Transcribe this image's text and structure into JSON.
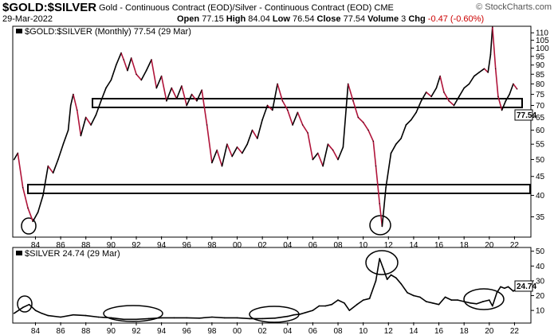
{
  "header": {
    "symbol": "$GOLD:$SILVER",
    "description": "Gold - Continuous Contract (EOD)/Silver - Continuous Contract (EOD)  CME",
    "date": "29-Mar-2022",
    "open_label": "Open",
    "open": "77.15",
    "high_label": "High",
    "high": "84.04",
    "low_label": "Low",
    "low": "76.54",
    "close_label": "Close",
    "close": "77.54",
    "volume_label": "Volume",
    "volume": "3",
    "chg_label": "Chg",
    "chg": "-0.47 (-0.60%)",
    "brand": "© StockCharts.com"
  },
  "colors": {
    "up": "#000000",
    "down": "#b0143a",
    "silver": "#000000",
    "box": "#000000"
  },
  "chart_data": [
    {
      "type": "line",
      "legend": "$GOLD:$SILVER (Monthly) 77.54 (29 Mar)",
      "last_value_label": "77.54",
      "scale": "log",
      "ylim": [
        31,
        114
      ],
      "xlim": [
        1982.2,
        2023.3
      ],
      "y_ticks": [
        35,
        40,
        45,
        50,
        55,
        60,
        65,
        70,
        75,
        80,
        85,
        90,
        95,
        100,
        105,
        110
      ],
      "x_ticks": [
        "84",
        "86",
        "88",
        "90",
        "92",
        "94",
        "96",
        "98",
        "00",
        "02",
        "04",
        "06",
        "08",
        "10",
        "12",
        "14",
        "16",
        "18",
        "20",
        "22"
      ],
      "x": [
        1982.3,
        1982.6,
        1983.0,
        1983.4,
        1983.8,
        1984.2,
        1984.6,
        1985.0,
        1985.4,
        1985.8,
        1986.2,
        1986.6,
        1986.8,
        1987.0,
        1987.3,
        1987.6,
        1988.0,
        1988.4,
        1988.8,
        1989.2,
        1989.6,
        1990.0,
        1990.4,
        1990.8,
        1991.0,
        1991.3,
        1991.6,
        1992.0,
        1992.4,
        1992.8,
        1993.2,
        1993.6,
        1994.0,
        1994.4,
        1994.8,
        1995.2,
        1995.6,
        1996.0,
        1996.4,
        1996.8,
        1997.2,
        1997.6,
        1998.0,
        1998.4,
        1998.8,
        1999.2,
        1999.6,
        2000.0,
        2000.4,
        2000.8,
        2001.2,
        2001.6,
        2002.0,
        2002.4,
        2002.8,
        2003.2,
        2003.6,
        2004.0,
        2004.4,
        2004.8,
        2005.2,
        2005.6,
        2006.0,
        2006.4,
        2006.8,
        2007.2,
        2007.6,
        2008.0,
        2008.4,
        2008.8,
        2009.2,
        2009.6,
        2010.0,
        2010.4,
        2010.8,
        2011.0,
        2011.3,
        2011.5,
        2011.8,
        2012.2,
        2012.6,
        2013.0,
        2013.4,
        2013.8,
        2014.2,
        2014.6,
        2015.0,
        2015.4,
        2015.8,
        2016.1,
        2016.4,
        2016.8,
        2017.2,
        2017.6,
        2018.0,
        2018.4,
        2018.8,
        2019.2,
        2019.6,
        2019.9,
        2020.1,
        2020.25,
        2020.5,
        2020.7,
        2021.0,
        2021.3,
        2021.6,
        2021.9,
        2022.2
      ],
      "values": [
        50,
        52,
        42,
        37,
        34,
        36,
        40,
        48,
        46,
        50,
        55,
        60,
        70,
        75,
        68,
        58,
        65,
        62,
        66,
        72,
        78,
        82,
        90,
        97,
        93,
        87,
        94,
        85,
        82,
        87,
        93,
        78,
        84,
        72,
        78,
        73,
        79,
        70,
        75,
        72,
        77,
        62,
        49,
        53,
        48,
        55,
        51,
        54,
        52,
        55,
        60,
        57,
        64,
        70,
        68,
        80,
        72,
        68,
        62,
        67,
        62,
        59,
        50,
        52,
        48,
        55,
        53,
        50,
        54,
        80,
        72,
        65,
        63,
        60,
        56,
        48,
        38,
        33,
        42,
        52,
        55,
        57,
        62,
        64,
        67,
        72,
        76,
        74,
        78,
        84,
        76,
        72,
        70,
        74,
        78,
        80,
        84,
        86,
        88,
        86,
        96,
        114,
        88,
        74,
        68,
        72,
        75,
        80,
        77.54
      ]
    },
    {
      "type": "line",
      "legend": "$SILVER 24.74 (29 Mar)",
      "last_value_label": "24.74",
      "ylim": [
        2,
        52
      ],
      "xlim": [
        1982.2,
        2023.3
      ],
      "y_ticks": [
        10,
        20,
        30,
        40,
        50
      ],
      "x_ticks": [
        "84",
        "86",
        "88",
        "90",
        "92",
        "94",
        "96",
        "98",
        "00",
        "02",
        "04",
        "06",
        "08",
        "10",
        "12",
        "14",
        "16",
        "18",
        "20",
        "22"
      ],
      "x": [
        1982.3,
        1983.0,
        1983.5,
        1984.0,
        1984.5,
        1985.0,
        1986.0,
        1987.0,
        1988.0,
        1989.0,
        1990.0,
        1991.0,
        1992.0,
        1993.0,
        1994.0,
        1995.0,
        1996.0,
        1997.0,
        1998.0,
        1999.0,
        2000.0,
        2001.0,
        2002.0,
        2003.0,
        2004.0,
        2004.5,
        2005.0,
        2006.0,
        2006.5,
        2007.0,
        2007.5,
        2008.0,
        2008.5,
        2008.9,
        2009.5,
        2010.0,
        2010.5,
        2011.0,
        2011.3,
        2011.6,
        2011.9,
        2012.2,
        2012.6,
        2013.0,
        2013.5,
        2014.0,
        2014.5,
        2015.0,
        2015.5,
        2016.0,
        2016.5,
        2017.0,
        2017.5,
        2018.0,
        2018.5,
        2019.0,
        2019.5,
        2020.0,
        2020.25,
        2020.6,
        2020.9,
        2021.2,
        2021.5,
        2021.9,
        2022.2
      ],
      "values": [
        8,
        12,
        14,
        10,
        8,
        6.5,
        5.5,
        7,
        6.5,
        5.5,
        5,
        4,
        4,
        4.5,
        5,
        5,
        5,
        4.8,
        5.5,
        5,
        5,
        4.5,
        4.5,
        4.8,
        6,
        7,
        7.5,
        10,
        13,
        13,
        14,
        17,
        15,
        10,
        14,
        17,
        18,
        30,
        45,
        38,
        31,
        34,
        32,
        28,
        22,
        20,
        19,
        16,
        15,
        14,
        19,
        17,
        17,
        16,
        15,
        14.5,
        16,
        17,
        13,
        22,
        26,
        25,
        26,
        23,
        24.74
      ]
    }
  ]
}
